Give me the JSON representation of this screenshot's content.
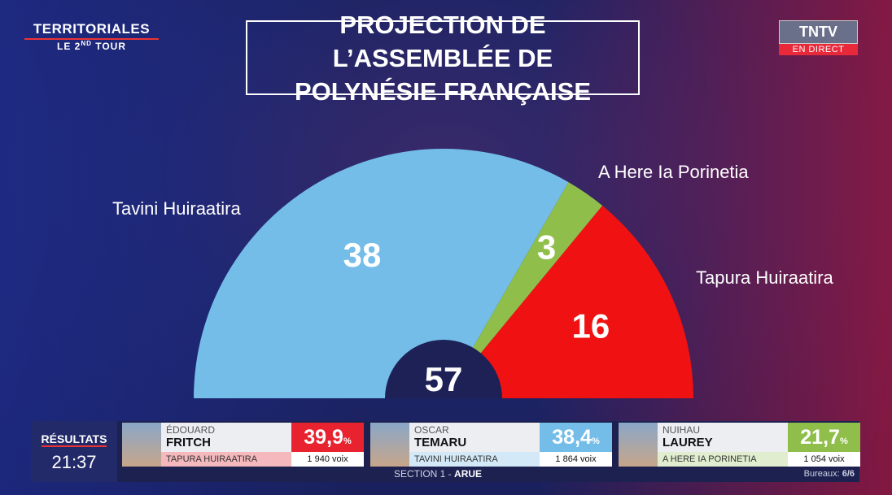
{
  "chart_data": {
    "type": "semicircle",
    "title": "PROJECTION DE L’ASSEMBLÉE DE POLYNÉSIE FRANÇAISE",
    "categories": [
      "Tavini Huiraatira",
      "A Here Ia Porinetia",
      "Tapura Huiraatira"
    ],
    "values": [
      38,
      3,
      16
    ],
    "colors": [
      "#74bde9",
      "#8fbf4a",
      "#f01212"
    ],
    "total": 57
  },
  "header": {
    "title": "TERRITORIALES",
    "round_prefix": "LE 2",
    "round_sup": "ND",
    "round_suffix": "TOUR",
    "channel": "TNTV",
    "live": "EN DIRECT"
  },
  "results": {
    "label": "RÉSULTATS",
    "time": "21:37",
    "candidates": [
      {
        "first": "ÉDOUARD",
        "last": "FRITCH",
        "party": "TAPURA HUIRAATIRA",
        "percent": "39,9",
        "unit": "%",
        "votes": "1 940 voix",
        "color": "#e8232f",
        "party_bg": "#f4b8bd"
      },
      {
        "first": "OSCAR",
        "last": "TEMARU",
        "party": "TAVINI HUIRAATIRA",
        "percent": "38,4",
        "unit": "%",
        "votes": "1 864 voix",
        "color": "#74bde9",
        "party_bg": "#d3e9f7"
      },
      {
        "first": "NUIHAU",
        "last": "LAUREY",
        "party": "A HERE IA PORINETIA",
        "percent": "21,7",
        "unit": "%",
        "votes": "1 054 voix",
        "color": "#8fbf4a",
        "party_bg": "#e0eecf"
      }
    ],
    "section": "SECTION 1 -",
    "place": "ARUE",
    "bureaux_label": "Bureaux:",
    "bureaux": "6/6"
  }
}
